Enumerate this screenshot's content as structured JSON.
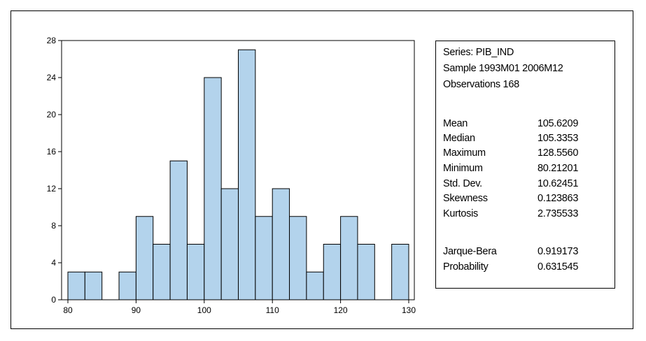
{
  "chart_data": {
    "type": "bar",
    "subtype": "histogram",
    "bin_width": 2.5,
    "bins": [
      {
        "start": 80.0,
        "end": 82.5,
        "count": 3
      },
      {
        "start": 82.5,
        "end": 85.0,
        "count": 3
      },
      {
        "start": 85.0,
        "end": 87.5,
        "count": 0
      },
      {
        "start": 87.5,
        "end": 90.0,
        "count": 3
      },
      {
        "start": 90.0,
        "end": 92.5,
        "count": 9
      },
      {
        "start": 92.5,
        "end": 95.0,
        "count": 6
      },
      {
        "start": 95.0,
        "end": 97.5,
        "count": 15
      },
      {
        "start": 97.5,
        "end": 100.0,
        "count": 6
      },
      {
        "start": 100.0,
        "end": 102.5,
        "count": 24
      },
      {
        "start": 102.5,
        "end": 105.0,
        "count": 12
      },
      {
        "start": 105.0,
        "end": 107.5,
        "count": 27
      },
      {
        "start": 107.5,
        "end": 110.0,
        "count": 9
      },
      {
        "start": 110.0,
        "end": 112.5,
        "count": 12
      },
      {
        "start": 112.5,
        "end": 115.0,
        "count": 9
      },
      {
        "start": 115.0,
        "end": 117.5,
        "count": 3
      },
      {
        "start": 117.5,
        "end": 120.0,
        "count": 6
      },
      {
        "start": 120.0,
        "end": 122.5,
        "count": 9
      },
      {
        "start": 122.5,
        "end": 125.0,
        "count": 6
      },
      {
        "start": 125.0,
        "end": 127.5,
        "count": 0
      },
      {
        "start": 127.5,
        "end": 130.0,
        "count": 6
      }
    ],
    "xlim": [
      80,
      130
    ],
    "ylim": [
      0,
      28
    ],
    "x_ticks": [
      "80",
      "90",
      "100",
      "110",
      "120",
      "130"
    ],
    "y_ticks": [
      "0",
      "4",
      "8",
      "12",
      "16",
      "20",
      "24",
      "28"
    ],
    "grid": false,
    "bar_color": "#b3d3ec",
    "bar_edge_color": "#000000"
  },
  "stats": {
    "series": "Series: PIB_IND",
    "sample": "Sample 1993M01 2006M12",
    "observations": "Observations 168",
    "rows": [
      {
        "label": "Mean",
        "value": "105.6209"
      },
      {
        "label": "Median",
        "value": "105.3353"
      },
      {
        "label": "Maximum",
        "value": "128.5560"
      },
      {
        "label": "Minimum",
        "value": "80.21201"
      },
      {
        "label": "Std. Dev.",
        "value": "10.62451"
      },
      {
        "label": "Skewness",
        "value": "0.123863"
      },
      {
        "label": "Kurtosis",
        "value": "2.735533"
      }
    ],
    "test_rows": [
      {
        "label": "Jarque-Bera",
        "value": "0.919173"
      },
      {
        "label": "Probability",
        "value": "0.631545"
      }
    ]
  }
}
